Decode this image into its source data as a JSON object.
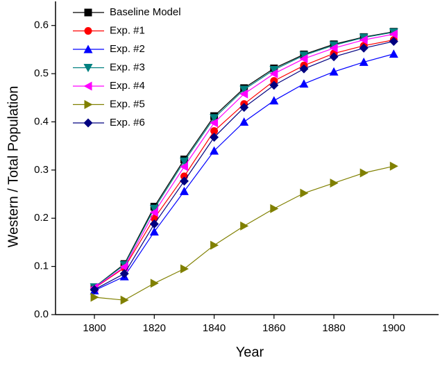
{
  "chart_data": {
    "type": "line",
    "x": [
      1800,
      1810,
      1820,
      1830,
      1840,
      1850,
      1860,
      1870,
      1880,
      1890,
      1900
    ],
    "xlabel": "Year",
    "ylabel": "Western / Total Population",
    "xlim": [
      1787,
      1915
    ],
    "xticks": [
      1800,
      1820,
      1840,
      1860,
      1880,
      1900
    ],
    "ylim": [
      0,
      0.65
    ],
    "yticks": [
      {
        "value": 0,
        "label": "0.0"
      },
      0.1,
      0.2,
      0.3,
      0.4,
      0.5,
      0.6
    ],
    "legend": "upper-left",
    "grid": false,
    "series": [
      {
        "name": "Baseline Model",
        "color": "#000000",
        "marker": "square",
        "values": [
          0.057,
          0.105,
          0.224,
          0.322,
          0.412,
          0.47,
          0.511,
          0.54,
          0.561,
          0.576,
          0.587
        ]
      },
      {
        "name": "Exp. #1",
        "color": "#ff0000",
        "marker": "circle",
        "values": [
          0.055,
          0.097,
          0.2,
          0.287,
          0.381,
          0.437,
          0.485,
          0.517,
          0.542,
          0.558,
          0.57
        ]
      },
      {
        "name": "Exp. #2",
        "color": "#0000ff",
        "marker": "triangle-up",
        "values": [
          0.05,
          0.079,
          0.172,
          0.256,
          0.34,
          0.4,
          0.444,
          0.479,
          0.504,
          0.524,
          0.541
        ]
      },
      {
        "name": "Exp. #3",
        "color": "#008080",
        "marker": "triangle-down",
        "values": [
          0.057,
          0.103,
          0.22,
          0.318,
          0.408,
          0.467,
          0.508,
          0.538,
          0.559,
          0.575,
          0.586
        ]
      },
      {
        "name": "Exp. #4",
        "color": "#ff00ff",
        "marker": "triangle-left",
        "values": [
          0.056,
          0.099,
          0.212,
          0.307,
          0.398,
          0.458,
          0.5,
          0.531,
          0.553,
          0.57,
          0.582
        ]
      },
      {
        "name": "Exp. #5",
        "color": "#808000",
        "marker": "triangle-right",
        "values": [
          0.036,
          0.03,
          0.065,
          0.095,
          0.144,
          0.184,
          0.22,
          0.252,
          0.273,
          0.294,
          0.308
        ]
      },
      {
        "name": "Exp. #6",
        "color": "#000080",
        "marker": "diamond",
        "values": [
          0.052,
          0.085,
          0.188,
          0.277,
          0.368,
          0.43,
          0.476,
          0.51,
          0.535,
          0.553,
          0.567
        ]
      }
    ]
  }
}
